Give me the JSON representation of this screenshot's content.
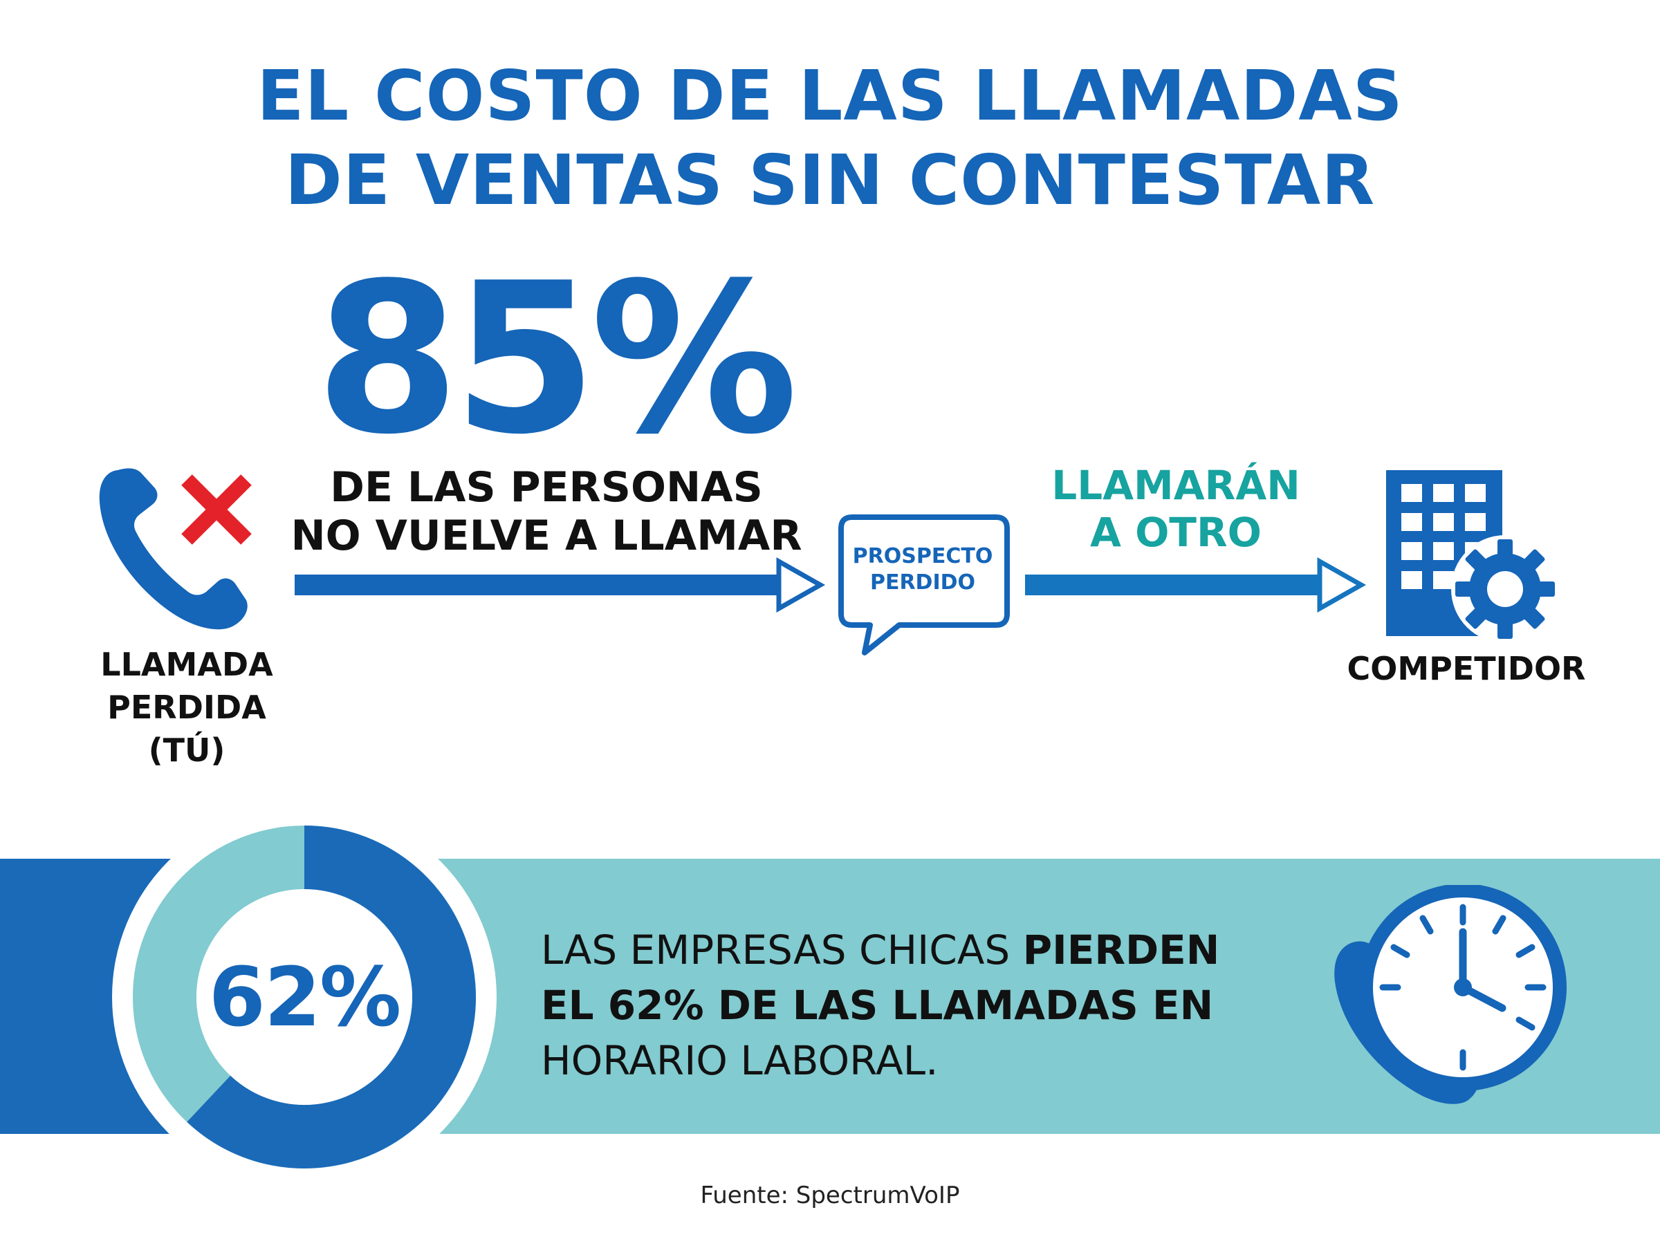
{
  "title": {
    "line1": "EL COSTO DE LAS LLAMADAS",
    "line2": "DE VENTAS SIN CONTESTAR"
  },
  "stat85": {
    "value": "85%",
    "line1": "DE LAS PERSONAS",
    "line2": "NO VUELVE A LLAMAR"
  },
  "missed_call": {
    "icon": "phone-x-icon",
    "line1": "LLAMADA",
    "line2": "PERDIDA",
    "line3": "(TÚ)"
  },
  "bubble": {
    "icon": "speech-bubble-icon",
    "line1": "PROSPECTO",
    "line2": "PERDIDO"
  },
  "redirect": {
    "line1": "LLAMARÁN",
    "line2": "A OTRO"
  },
  "competitor": {
    "icon": "building-gear-icon",
    "label": "COMPETIDOR"
  },
  "stat62": {
    "value": "62%",
    "fraction": 0.62,
    "line1_a": "LAS EMPRESAS CHICAS ",
    "line1_b": "PIERDEN",
    "line2": "EL 62% DE LAS LLAMADAS EN",
    "line3": "HORARIO LABORAL.",
    "icon": "phone-clock-icon"
  },
  "source": "Fuente: SpectrumVoIP",
  "colors": {
    "blue": "#1565b8",
    "teal_text": "#17a3a0",
    "teal_band": "#82cbd0",
    "red": "#e32329",
    "dark": "#111111"
  }
}
